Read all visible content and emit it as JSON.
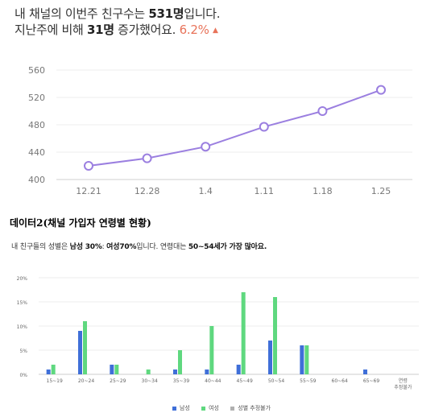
{
  "header": {
    "line1": {
      "pre": "내 채널의 이번주 친구수는 ",
      "bold": "531명",
      "post": "입니다."
    },
    "line2": {
      "pre": "지난주에 비해 ",
      "bold": "31명",
      "mid": " 증가했어요. ",
      "pct": "6.2%",
      "arrow": "▲"
    }
  },
  "section_title": "데이터2(채널 가입자 연령별 현황)",
  "summary": {
    "p1": "내 친구들의 성별은 ",
    "b1": "남성 30%",
    "p2": ": ",
    "b2": "여성70%",
    "p3": "입니다. 연령대는 ",
    "b3": "50~54세가 가장 많아요."
  },
  "colors": {
    "line": "#9b7fe0",
    "male": "#3f6fd8",
    "female": "#5fd87f",
    "unknown": "#b0b0b0"
  },
  "chart_data": [
    {
      "type": "line",
      "categories": [
        "12.21",
        "12.28",
        "1.4",
        "1.11",
        "1.18",
        "1.25"
      ],
      "series": [
        {
          "values": [
            420,
            431,
            448,
            477,
            500,
            531
          ]
        }
      ],
      "yticks": [
        "400",
        "440",
        "480",
        "520",
        "560"
      ],
      "ylim": [
        400,
        560
      ],
      "grid": true
    },
    {
      "type": "bar",
      "categories": [
        "15~19",
        "20~24",
        "25~29",
        "30~34",
        "35~39",
        "40~44",
        "45~49",
        "50~54",
        "55~59",
        "60~64",
        "65~69",
        "연령\n추정불가"
      ],
      "series": [
        {
          "name": "남성",
          "values": [
            1,
            9,
            2,
            0,
            1,
            1,
            2,
            7,
            6,
            0,
            1,
            0
          ]
        },
        {
          "name": "여성",
          "values": [
            2,
            11,
            2,
            1,
            5,
            10,
            17,
            16,
            6,
            0,
            0,
            0
          ]
        },
        {
          "name": "성별 추정불가",
          "values": [
            0,
            0,
            0,
            0,
            0,
            0,
            0,
            0,
            0,
            0,
            0,
            0
          ]
        }
      ],
      "yticks": [
        "0%",
        "5%",
        "10%",
        "15%",
        "20%"
      ],
      "ylim": [
        0,
        20
      ],
      "grid": true,
      "legend_position": "bottom"
    }
  ]
}
